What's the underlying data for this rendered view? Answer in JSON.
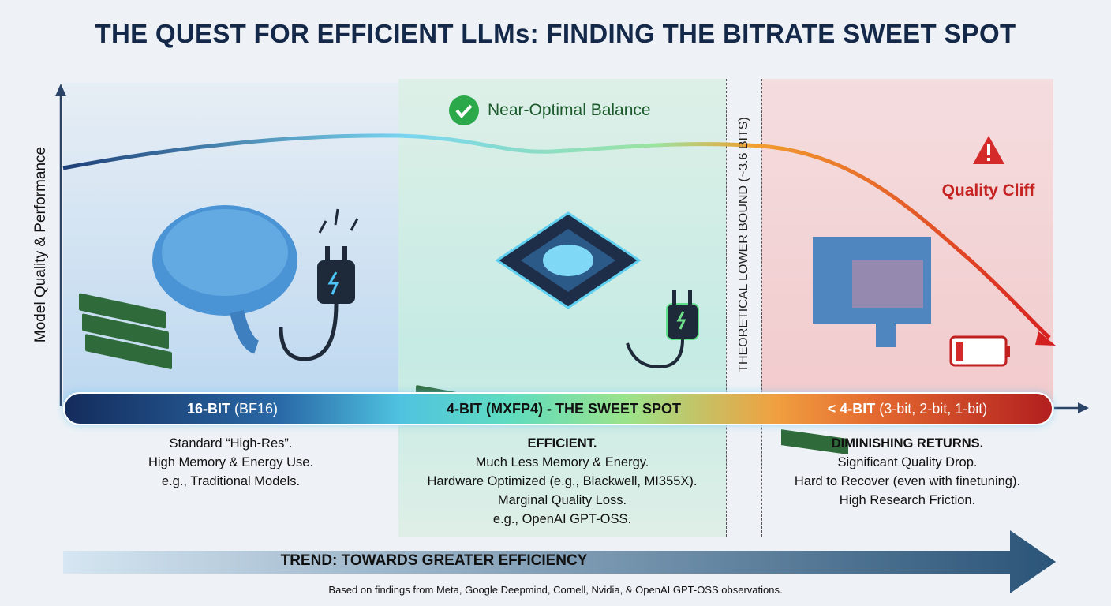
{
  "title": "THE QUEST FOR EFFICIENT LLMs: FINDING THE BITRATE SWEET SPOT",
  "y_axis_label": "Model Quality & Performance",
  "sweet_spot_badge": "Near-Optimal Balance",
  "bound_label": "THEORETICAL LOWER BOUND (~3.6 BITS)",
  "cliff_label": "Quality Cliff",
  "segments": [
    {
      "bold": "16-BIT",
      "rest": " (BF16)",
      "lines": [
        "Standard “High-Res”.",
        "High Memory & Energy Use.",
        "e.g., Traditional Models."
      ]
    },
    {
      "bold": "4-BIT (MXFP4) - THE SWEET SPOT",
      "rest": "",
      "lines": [
        "EFFICIENT.",
        "Much Less Memory & Energy.",
        "Hardware Optimized (e.g., Blackwell, MI355X).",
        "Marginal Quality Loss.",
        "e.g., OpenAI GPT-OSS."
      ]
    },
    {
      "bold": "< 4-BIT",
      "rest": " (3-bit, 2-bit, 1-bit)",
      "lines": [
        "DIMINISHING RETURNS.",
        "Significant Quality Drop.",
        "Hard to Recover (even with finetuning).",
        "High Research Friction."
      ]
    }
  ],
  "trend_label": "TREND: TOWARDS GREATER EFFICIENCY",
  "footnote": "Based on findings from Meta, Google Deepmind, Cornell, Nvidia, & OpenAI GPT-OSS observations.",
  "colors": {
    "title": "#14294a",
    "good": "#2aa84a",
    "bad": "#d42a2a"
  }
}
